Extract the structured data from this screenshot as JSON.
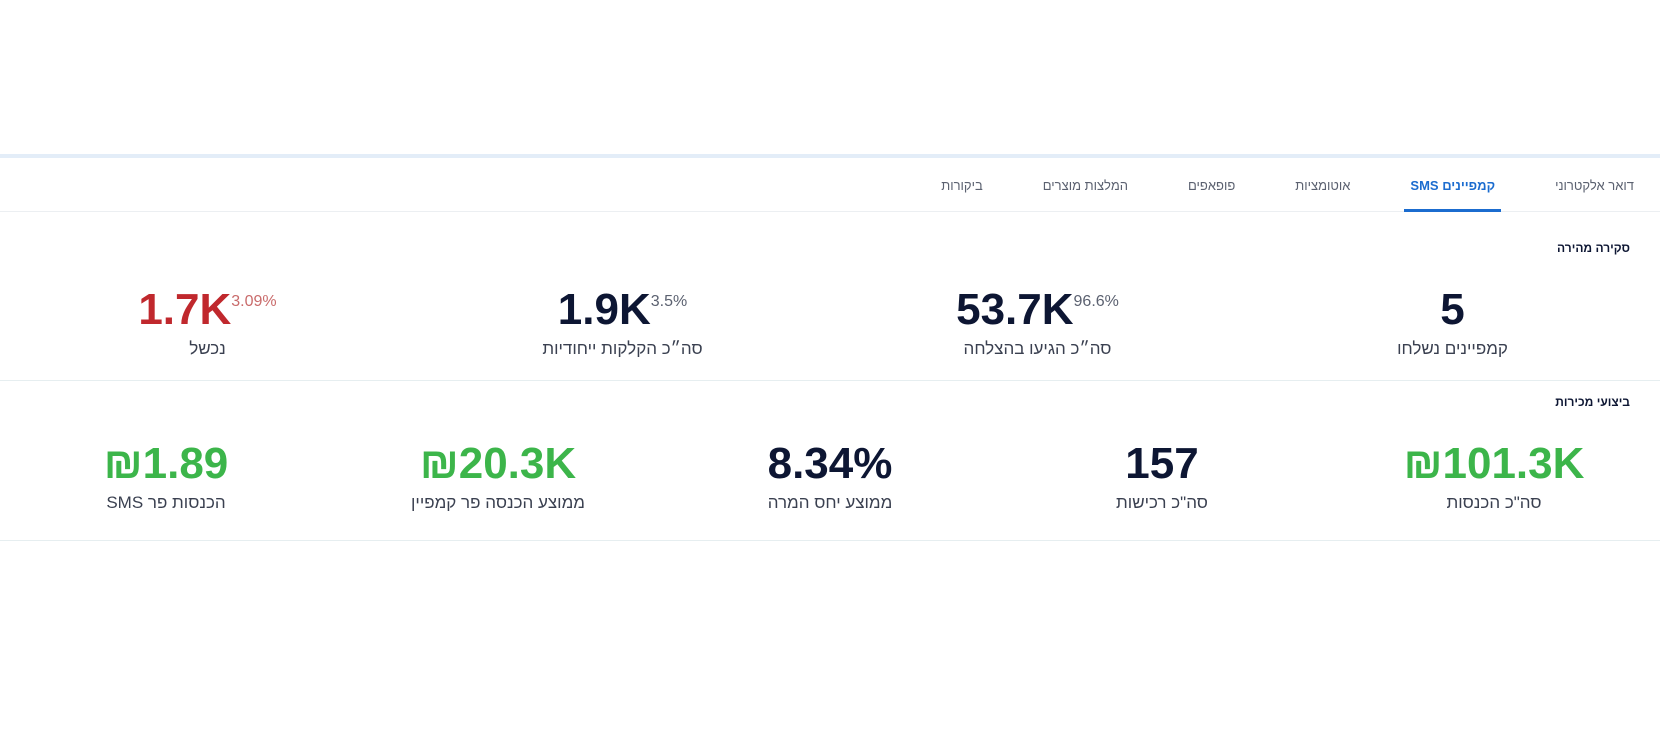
{
  "tabs": [
    "דואר אלקטרוני",
    "קמפיינים SMS",
    "אוטומציות",
    "פופאפים",
    "המלצות מוצרים",
    "ביקורות"
  ],
  "overview": {
    "title": "סקירה מהירה",
    "stats": [
      {
        "value": "5",
        "label": "קמפיינים נשלחו"
      },
      {
        "value": "53.7K",
        "percent": "96.6%",
        "label": "סה״כ הגיעו בהצלחה"
      },
      {
        "value": "1.9K",
        "percent": "3.5%",
        "label": "סה״כ הקלקות ייחודיות"
      },
      {
        "value": "1.7K",
        "percent": "3.09%",
        "label": "נכשל"
      }
    ]
  },
  "sales": {
    "title": "ביצועי מכירות",
    "stats": [
      {
        "value": "₪101.3K",
        "label": "סה\"כ הכנסות"
      },
      {
        "value": "157",
        "label": "סה\"כ רכישות"
      },
      {
        "value": "8.34%",
        "label": "ממוצע יחס המרה"
      },
      {
        "value": "₪20.3K",
        "label": "ממוצע הכנסה פר קמפיין"
      },
      {
        "value": "₪1.89",
        "label": "הכנסות פר SMS"
      }
    ]
  }
}
